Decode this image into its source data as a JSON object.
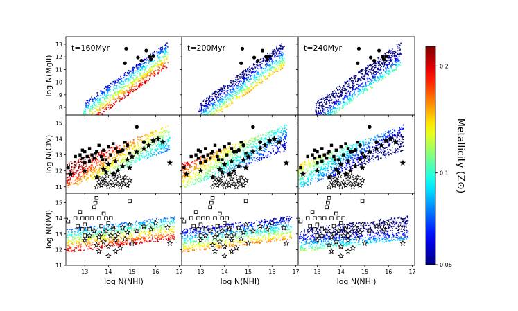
{
  "chart_data": {
    "type": "scatter",
    "panel_titles": [
      "t=160Myr",
      "t=200Myr",
      "t=240Myr"
    ],
    "xlabel": "log N(NHI)",
    "x_ticks": [
      13,
      14,
      15,
      16,
      17
    ],
    "xlim": [
      12.2,
      17.1
    ],
    "rows": [
      {
        "ylabel": "log N(MgII)",
        "ylim": [
          7.4,
          13.6
        ],
        "y_ticks": [
          8,
          9,
          10,
          11,
          12,
          13
        ]
      },
      {
        "ylabel": "log N(CIV)",
        "ylim": [
          10.6,
          15.5
        ],
        "y_ticks": [
          11,
          12,
          13,
          14,
          15
        ]
      },
      {
        "ylabel": "log N(OVI)",
        "ylim": [
          11.0,
          15.6
        ],
        "y_ticks": [
          11,
          12,
          13,
          14,
          15
        ]
      }
    ],
    "colorbar": {
      "label": "Metallicity (Z⊙)",
      "ticks": [
        {
          "label": "0.2",
          "frac": 0.91
        },
        {
          "label": "0.1",
          "frac": 0.42
        },
        {
          "label": "0.06",
          "frac": 0.0
        }
      ]
    },
    "observations": {
      "mgii_circles": [
        [
          14.75,
          12.65
        ],
        [
          15.6,
          12.5
        ],
        [
          15.25,
          11.95
        ],
        [
          15.75,
          12.0
        ],
        [
          14.7,
          11.5
        ],
        [
          15.4,
          11.7
        ],
        [
          15.8,
          11.8
        ],
        [
          15.9,
          12.05
        ]
      ],
      "civ_circles": [
        [
          15.2,
          14.75
        ],
        [
          14.8,
          13.6
        ],
        [
          14.6,
          13.3
        ],
        [
          14.4,
          13.2
        ],
        [
          15.5,
          13.8
        ],
        [
          15.9,
          13.9
        ]
      ],
      "civ_squares": [
        [
          12.3,
          12.2
        ],
        [
          12.6,
          12.9
        ],
        [
          12.8,
          13.0
        ],
        [
          12.9,
          13.3
        ],
        [
          13.0,
          12.5
        ],
        [
          13.0,
          13.2
        ],
        [
          13.1,
          12.9
        ],
        [
          13.2,
          13.4
        ],
        [
          13.3,
          13.0
        ],
        [
          13.4,
          12.8
        ],
        [
          13.5,
          13.2
        ],
        [
          13.6,
          13.6
        ],
        [
          13.7,
          12.9
        ],
        [
          13.8,
          13.3
        ],
        [
          13.9,
          12.7
        ],
        [
          14.0,
          13.5
        ],
        [
          14.1,
          13.0
        ],
        [
          14.2,
          13.7
        ],
        [
          14.3,
          13.4
        ],
        [
          14.5,
          13.2
        ],
        [
          14.7,
          13.8
        ],
        [
          14.9,
          13.1
        ],
        [
          13.2,
          12.6
        ],
        [
          12.9,
          12.8
        ],
        [
          13.45,
          13.1
        ],
        [
          13.75,
          12.7
        ]
      ],
      "civ_stars": [
        [
          12.4,
          11.8
        ],
        [
          13.0,
          12.0
        ],
        [
          13.5,
          11.6
        ],
        [
          13.8,
          12.1
        ],
        [
          14.0,
          12.4
        ],
        [
          14.2,
          11.8
        ],
        [
          14.4,
          12.0
        ],
        [
          14.6,
          12.3
        ],
        [
          14.8,
          12.7
        ],
        [
          15.0,
          12.9
        ],
        [
          15.2,
          13.2
        ],
        [
          15.5,
          13.4
        ],
        [
          15.7,
          13.6
        ],
        [
          15.9,
          13.9
        ],
        [
          16.1,
          14.0
        ],
        [
          16.3,
          13.8
        ],
        [
          16.6,
          12.5
        ],
        [
          14.9,
          12.2
        ],
        [
          14.3,
          12.6
        ],
        [
          13.9,
          11.9
        ]
      ],
      "civ_open_stars": [
        [
          13.5,
          11.0
        ],
        [
          13.6,
          11.3
        ],
        [
          13.7,
          11.1
        ],
        [
          13.8,
          11.4
        ],
        [
          13.9,
          11.2
        ],
        [
          14.0,
          11.0
        ],
        [
          14.1,
          11.3
        ],
        [
          14.2,
          11.1
        ],
        [
          14.3,
          11.5
        ],
        [
          14.4,
          11.2
        ],
        [
          14.5,
          11.0
        ],
        [
          14.6,
          11.4
        ],
        [
          14.7,
          11.6
        ],
        [
          14.8,
          11.1
        ],
        [
          13.55,
          11.6
        ],
        [
          13.95,
          11.7
        ],
        [
          14.25,
          11.8
        ],
        [
          14.45,
          11.7
        ],
        [
          14.65,
          11.2
        ],
        [
          13.75,
          11.5
        ],
        [
          14.9,
          11.4
        ]
      ],
      "ovi_squares": [
        [
          12.2,
          13.9
        ],
        [
          12.3,
          13.8
        ],
        [
          12.6,
          14.0
        ],
        [
          12.7,
          13.5
        ],
        [
          12.8,
          14.4
        ],
        [
          12.9,
          14.0
        ],
        [
          13.0,
          13.6
        ],
        [
          13.1,
          14.0
        ],
        [
          13.2,
          13.3
        ],
        [
          13.3,
          14.0
        ],
        [
          13.4,
          14.7
        ],
        [
          13.5,
          15.3
        ],
        [
          13.6,
          14.0
        ],
        [
          13.7,
          13.5
        ],
        [
          13.8,
          14.3
        ],
        [
          13.9,
          14.0
        ],
        [
          14.0,
          13.7
        ],
        [
          14.1,
          14.0
        ],
        [
          14.2,
          13.4
        ],
        [
          14.3,
          12.9
        ],
        [
          13.45,
          15.0
        ],
        [
          14.9,
          15.1
        ],
        [
          13.0,
          12.9
        ],
        [
          12.9,
          13.3
        ]
      ],
      "ovi_open_stars": [
        [
          13.0,
          12.6
        ],
        [
          13.2,
          12.9
        ],
        [
          13.4,
          13.2
        ],
        [
          13.5,
          12.3
        ],
        [
          13.6,
          12.8
        ],
        [
          13.7,
          13.0
        ],
        [
          13.8,
          12.5
        ],
        [
          13.9,
          13.2
        ],
        [
          14.0,
          12.2
        ],
        [
          14.1,
          12.9
        ],
        [
          14.2,
          13.3
        ],
        [
          14.3,
          12.6
        ],
        [
          14.4,
          13.0
        ],
        [
          14.5,
          12.1
        ],
        [
          14.6,
          13.4
        ],
        [
          14.7,
          12.7
        ],
        [
          14.8,
          13.1
        ],
        [
          14.9,
          13.6
        ],
        [
          15.0,
          12.4
        ],
        [
          15.2,
          13.2
        ],
        [
          15.5,
          13.5
        ],
        [
          15.8,
          13.3
        ],
        [
          16.0,
          13.7
        ],
        [
          16.5,
          13.4
        ],
        [
          16.6,
          12.4
        ],
        [
          13.6,
          11.9
        ],
        [
          14.0,
          11.6
        ],
        [
          14.3,
          11.9
        ]
      ]
    }
  }
}
